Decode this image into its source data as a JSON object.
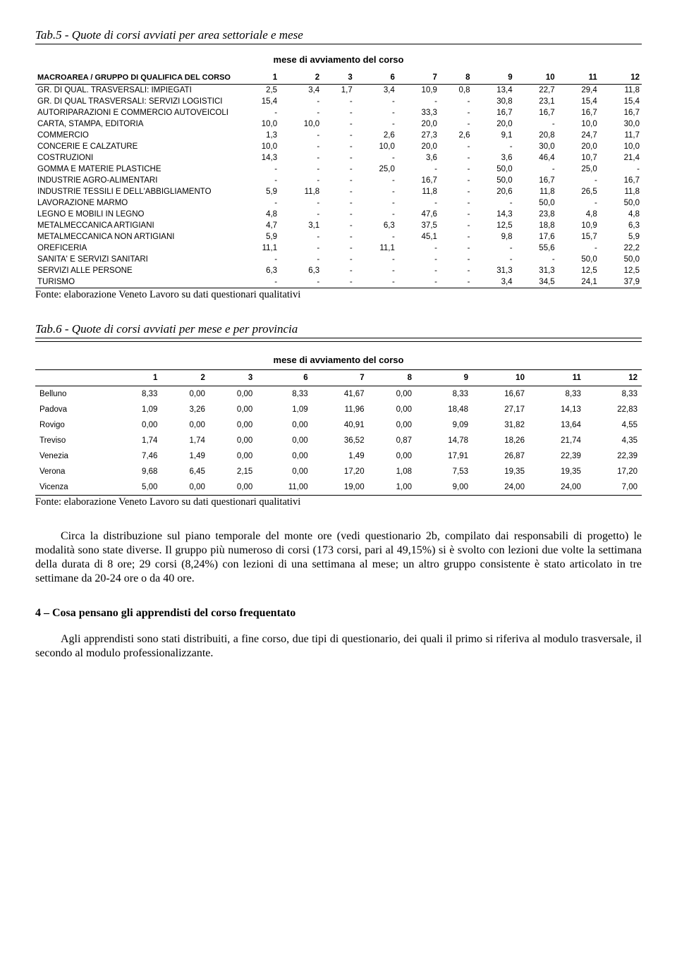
{
  "tab5": {
    "title": "Tab.5 - Quote di corsi avviati per area settoriale e mese",
    "subtitle": "mese di avviamento del corso",
    "header_label": "MACROAREA / GRUPPO DI QUALIFICA DEL CORSO",
    "cols": [
      "1",
      "2",
      "3",
      "6",
      "7",
      "8",
      "9",
      "10",
      "11",
      "12"
    ],
    "rows": [
      {
        "l": "GR. DI QUAL. TRASVERSALI: IMPIEGATI",
        "v": [
          "2,5",
          "3,4",
          "1,7",
          "3,4",
          "10,9",
          "0,8",
          "13,4",
          "22,7",
          "29,4",
          "11,8"
        ]
      },
      {
        "l": "GR. DI QUAL TRASVERSALI: SERVIZI LOGISTICI",
        "v": [
          "15,4",
          "-",
          "-",
          "-",
          "-",
          "-",
          "30,8",
          "23,1",
          "15,4",
          "15,4"
        ]
      },
      {
        "l": "AUTORIPARAZIONI E COMMERCIO AUTOVEICOLI",
        "v": [
          "-",
          "-",
          "-",
          "-",
          "33,3",
          "-",
          "16,7",
          "16,7",
          "16,7",
          "16,7"
        ]
      },
      {
        "l": "CARTA, STAMPA, EDITORIA",
        "v": [
          "10,0",
          "10,0",
          "-",
          "-",
          "20,0",
          "-",
          "20,0",
          "-",
          "10,0",
          "30,0"
        ]
      },
      {
        "l": "COMMERCIO",
        "v": [
          "1,3",
          "-",
          "-",
          "2,6",
          "27,3",
          "2,6",
          "9,1",
          "20,8",
          "24,7",
          "11,7"
        ]
      },
      {
        "l": "CONCERIE E CALZATURE",
        "v": [
          "10,0",
          "-",
          "-",
          "10,0",
          "20,0",
          "-",
          "-",
          "30,0",
          "20,0",
          "10,0"
        ]
      },
      {
        "l": "COSTRUZIONI",
        "v": [
          "14,3",
          "-",
          "-",
          "-",
          "3,6",
          "-",
          "3,6",
          "46,4",
          "10,7",
          "21,4"
        ]
      },
      {
        "l": "GOMMA E MATERIE PLASTICHE",
        "v": [
          "-",
          "-",
          "-",
          "25,0",
          "-",
          "-",
          "50,0",
          "-",
          "25,0",
          "-"
        ]
      },
      {
        "l": "INDUSTRIE AGRO-ALIMENTARI",
        "v": [
          "-",
          "-",
          "-",
          "-",
          "16,7",
          "-",
          "50,0",
          "16,7",
          "-",
          "16,7"
        ]
      },
      {
        "l": "INDUSTRIE TESSILI E DELL'ABBIGLIAMENTO",
        "v": [
          "5,9",
          "11,8",
          "-",
          "-",
          "11,8",
          "-",
          "20,6",
          "11,8",
          "26,5",
          "11,8"
        ]
      },
      {
        "l": "LAVORAZIONE MARMO",
        "v": [
          "-",
          "-",
          "-",
          "-",
          "-",
          "-",
          "-",
          "50,0",
          "-",
          "50,0"
        ]
      },
      {
        "l": "LEGNO E MOBILI IN LEGNO",
        "v": [
          "4,8",
          "-",
          "-",
          "-",
          "47,6",
          "-",
          "14,3",
          "23,8",
          "4,8",
          "4,8"
        ]
      },
      {
        "l": "METALMECCANICA ARTIGIANI",
        "v": [
          "4,7",
          "3,1",
          "-",
          "6,3",
          "37,5",
          "-",
          "12,5",
          "18,8",
          "10,9",
          "6,3"
        ]
      },
      {
        "l": "METALMECCANICA NON ARTIGIANI",
        "v": [
          "5,9",
          "-",
          "-",
          "-",
          "45,1",
          "-",
          "9,8",
          "17,6",
          "15,7",
          "5,9"
        ]
      },
      {
        "l": "OREFICERIA",
        "v": [
          "11,1",
          "-",
          "-",
          "11,1",
          "-",
          "-",
          "-",
          "55,6",
          "-",
          "22,2"
        ]
      },
      {
        "l": "SANITA' E SERVIZI SANITARI",
        "v": [
          "-",
          "-",
          "-",
          "-",
          "-",
          "-",
          "-",
          "-",
          "50,0",
          "50,0"
        ]
      },
      {
        "l": "SERVIZI ALLE PERSONE",
        "v": [
          "6,3",
          "6,3",
          "-",
          "-",
          "-",
          "-",
          "31,3",
          "31,3",
          "12,5",
          "12,5"
        ]
      },
      {
        "l": "TURISMO",
        "v": [
          "-",
          "-",
          "-",
          "-",
          "-",
          "-",
          "3,4",
          "34,5",
          "24,1",
          "37,9"
        ]
      }
    ],
    "source": "Fonte: elaborazione Veneto Lavoro su dati questionari qualitativi"
  },
  "tab6": {
    "title": "Tab.6 - Quote di corsi avviati per mese e per provincia",
    "subtitle": "mese di avviamento del corso",
    "cols": [
      "1",
      "2",
      "3",
      "6",
      "7",
      "8",
      "9",
      "10",
      "11",
      "12"
    ],
    "rows": [
      {
        "l": "Belluno",
        "v": [
          "8,33",
          "0,00",
          "0,00",
          "8,33",
          "41,67",
          "0,00",
          "8,33",
          "16,67",
          "8,33",
          "8,33"
        ]
      },
      {
        "l": "Padova",
        "v": [
          "1,09",
          "3,26",
          "0,00",
          "1,09",
          "11,96",
          "0,00",
          "18,48",
          "27,17",
          "14,13",
          "22,83"
        ]
      },
      {
        "l": "Rovigo",
        "v": [
          "0,00",
          "0,00",
          "0,00",
          "0,00",
          "40,91",
          "0,00",
          "9,09",
          "31,82",
          "13,64",
          "4,55"
        ]
      },
      {
        "l": "Treviso",
        "v": [
          "1,74",
          "1,74",
          "0,00",
          "0,00",
          "36,52",
          "0,87",
          "14,78",
          "18,26",
          "21,74",
          "4,35"
        ]
      },
      {
        "l": "Venezia",
        "v": [
          "7,46",
          "1,49",
          "0,00",
          "0,00",
          "1,49",
          "0,00",
          "17,91",
          "26,87",
          "22,39",
          "22,39"
        ]
      },
      {
        "l": "Verona",
        "v": [
          "9,68",
          "6,45",
          "2,15",
          "0,00",
          "17,20",
          "1,08",
          "7,53",
          "19,35",
          "19,35",
          "17,20"
        ]
      },
      {
        "l": "Vicenza",
        "v": [
          "5,00",
          "0,00",
          "0,00",
          "11,00",
          "19,00",
          "1,00",
          "9,00",
          "24,00",
          "24,00",
          "7,00"
        ]
      }
    ],
    "source": "Fonte: elaborazione Veneto Lavoro su dati questionari qualitativi"
  },
  "para1": "Circa la distribuzione sul piano temporale del monte ore (vedi questionario 2b, compilato dai responsabili di progetto) le modalità sono state diverse. Il gruppo più numeroso di corsi (173 corsi, pari al 49,15%) si è svolto con lezioni due volte la settimana della durata di 8 ore; 29 corsi (8,24%) con lezioni di una settimana al mese; un altro gruppo consistente è stato articolato in tre settimane da 20-24 ore o da 40 ore.",
  "section4": "4 – Cosa pensano gli apprendisti del corso frequentato",
  "para2": "Agli apprendisti sono stati distribuiti, a fine corso, due tipi di questionario, dei quali il primo si riferiva al modulo trasversale, il secondo al modulo professionalizzante."
}
